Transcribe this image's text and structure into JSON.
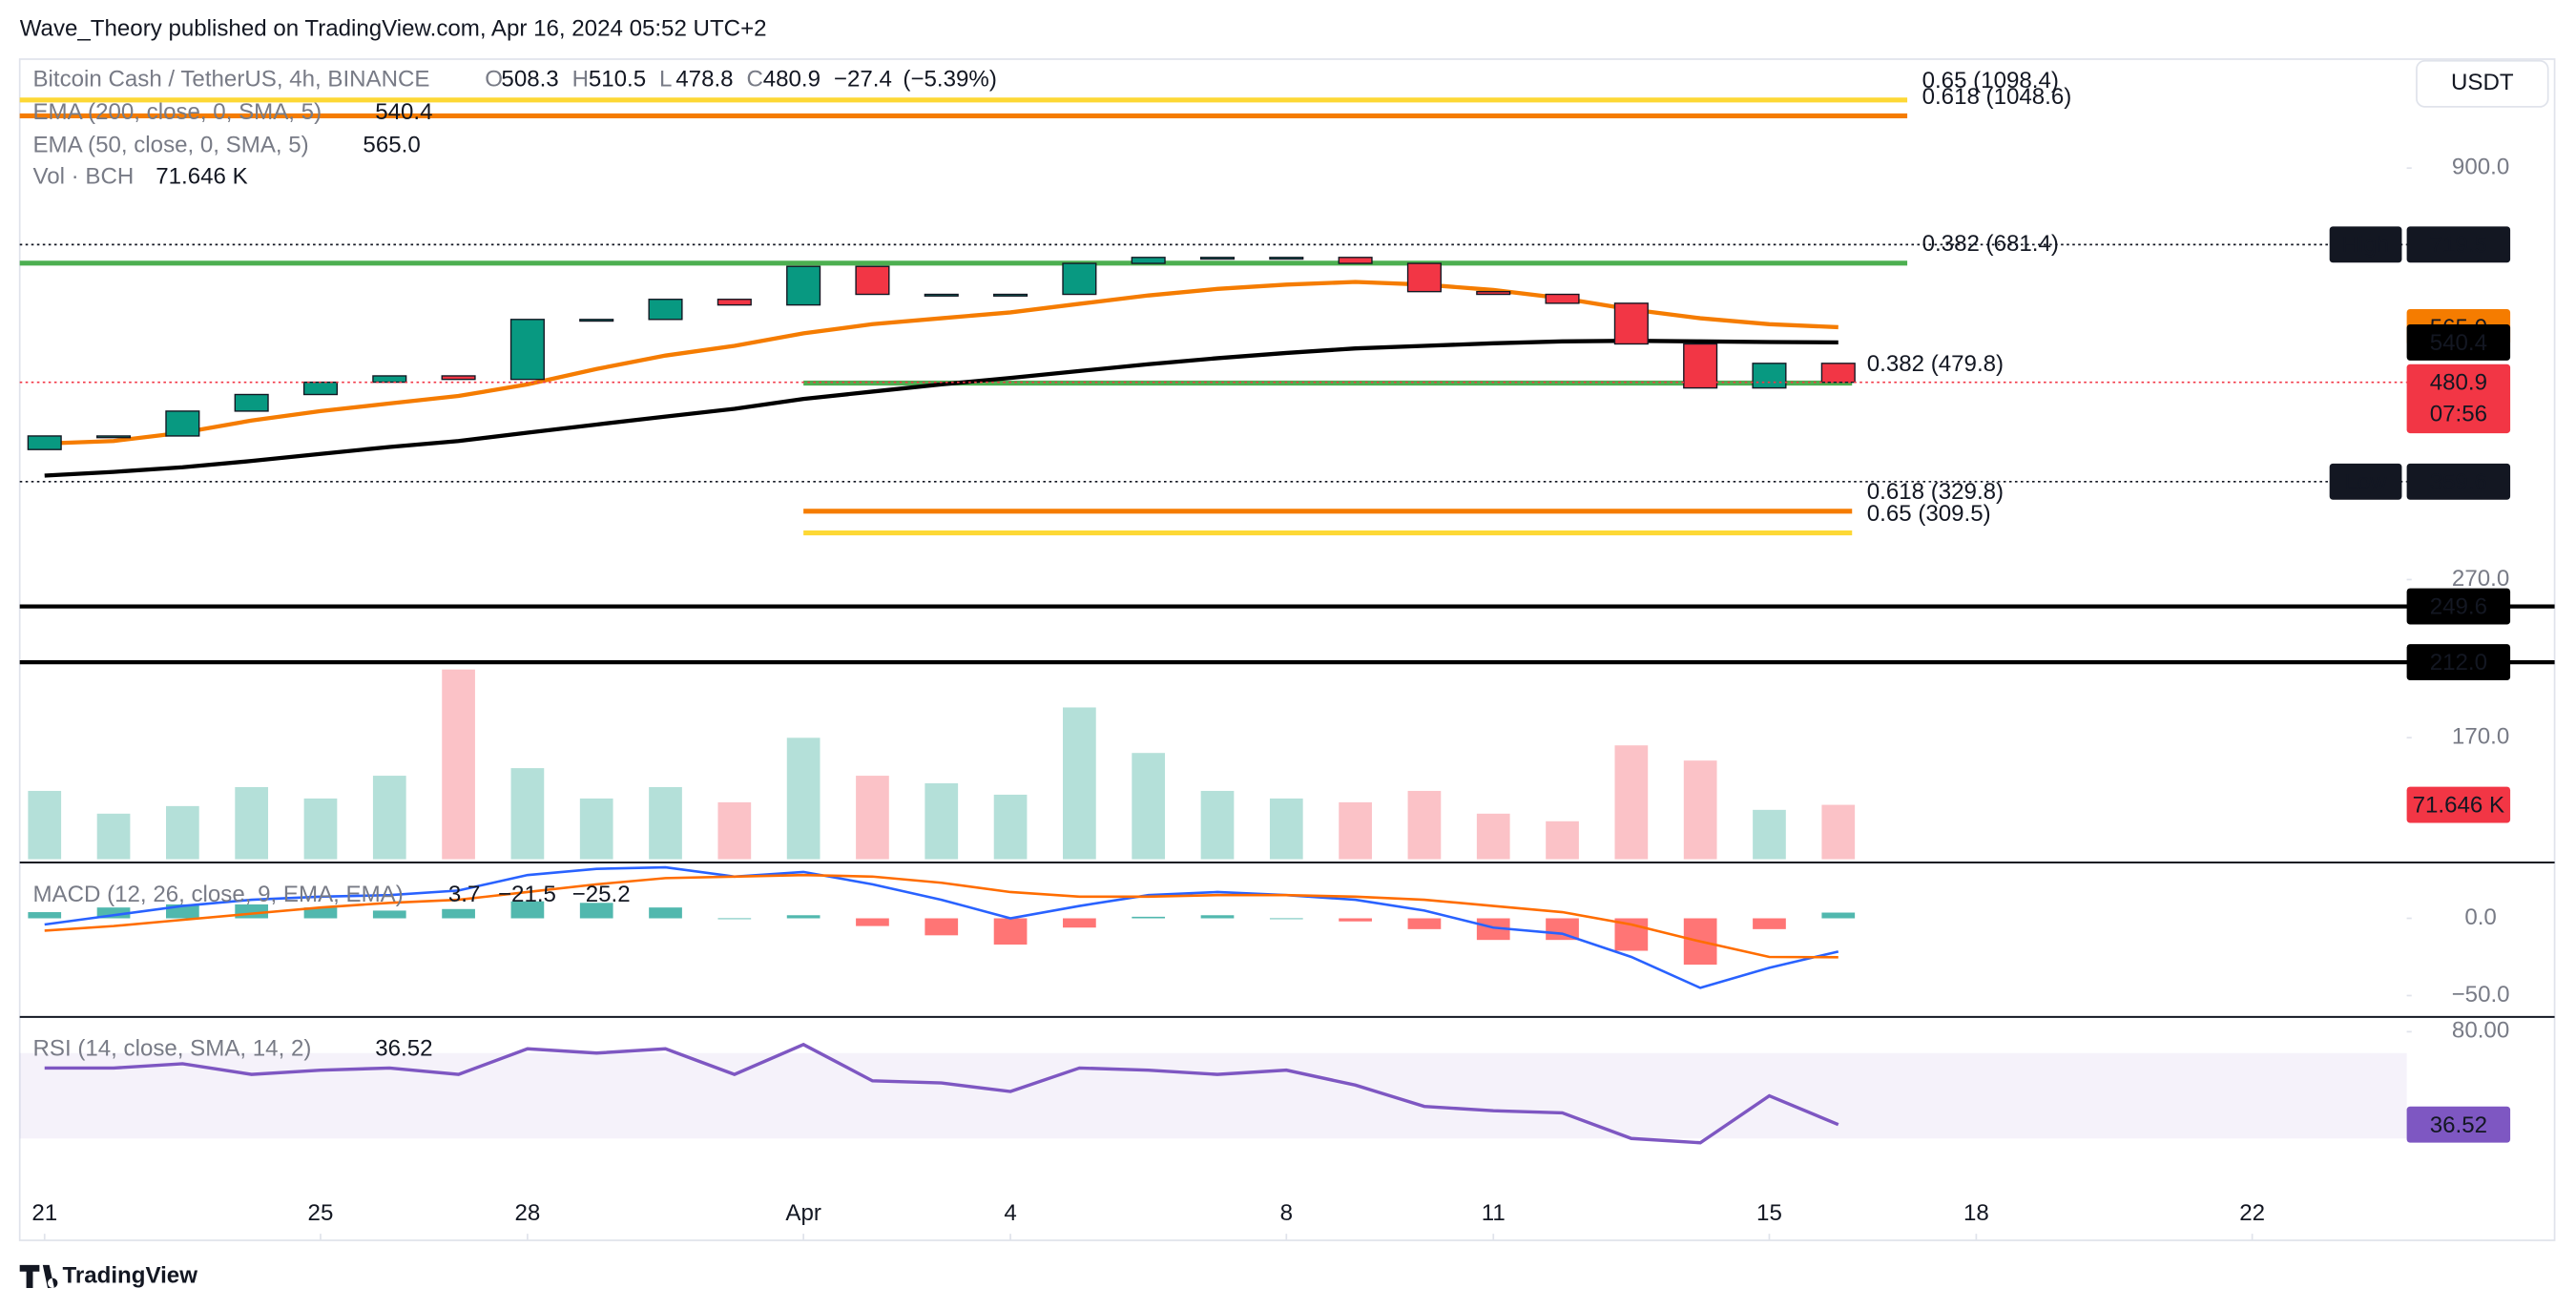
{
  "header": "Wave_Theory published on TradingView.com, Apr 16, 2024 05:52 UTC+2",
  "footer": "TradingView",
  "currency_button": "USDT",
  "chart_data": [
    {
      "type": "candlestick",
      "title": "Bitcoin Cash / TetherUS, 4h, BINANCE",
      "ohlc_legend": [
        {
          "key": "O",
          "value": 508.3
        },
        {
          "key": "H",
          "value": 510.5
        },
        {
          "key": "L",
          "value": 478.8
        },
        {
          "key": "C",
          "value": 480.9
        }
      ],
      "change": {
        "value": -27.4,
        "label": "−27.4"
      },
      "change_pct": {
        "value": -5.39,
        "label": "(−5.39%)"
      },
      "x": [
        0,
        1,
        2,
        3,
        4,
        5,
        6,
        7,
        8,
        9,
        10,
        11,
        12,
        13,
        14,
        15,
        16,
        17,
        18,
        19,
        20,
        21,
        22,
        23,
        24,
        25,
        26
      ],
      "open": [
        395,
        411,
        411,
        442,
        464,
        481,
        490,
        485,
        578,
        578,
        613,
        603,
        675,
        622,
        622,
        622,
        681,
        693,
        693,
        693,
        681,
        627,
        622,
        606,
        538,
        473,
        508.3
      ],
      "high": {
        "name": "High",
        "value": 719.5
      },
      "low": {
        "name": "Low",
        "value": 359.6
      },
      "close": [
        411,
        411,
        442,
        464,
        481,
        490,
        485,
        578,
        578,
        613,
        603,
        675,
        622,
        622,
        622,
        681,
        693,
        693,
        693,
        681,
        627,
        622,
        606,
        538,
        473,
        508.3,
        480.9
      ],
      "up_color": "#089981",
      "down_color": "#f23645",
      "log_scale": true,
      "xlim": [
        -0.36,
        34.24
      ],
      "xticks": [
        {
          "value": 0,
          "label": "21"
        },
        {
          "value": 4,
          "label": "25"
        },
        {
          "value": 7,
          "label": "28"
        },
        {
          "value": 11,
          "label": "Apr"
        },
        {
          "value": 14,
          "label": "4"
        },
        {
          "value": 18,
          "label": "8"
        },
        {
          "value": 21,
          "label": "11"
        },
        {
          "value": 25,
          "label": "15"
        },
        {
          "value": 28,
          "label": "18"
        },
        {
          "value": 32,
          "label": "22"
        }
      ],
      "ylim": [
        118,
        1226
      ],
      "yticks": [
        {
          "value": 900,
          "label": "900.0"
        },
        {
          "value": 270,
          "label": "270.0"
        },
        {
          "value": 170,
          "label": "170.0"
        }
      ],
      "series": [
        {
          "name": "EMA (200, close, 0, SMA, 5)",
          "color": "#000000",
          "values": [
            366,
            370,
            375,
            382,
            390,
            398,
            405,
            415,
            425,
            435,
            445,
            458,
            468,
            478,
            487,
            497,
            507,
            516,
            524,
            531,
            535,
            539,
            542,
            543,
            542,
            541,
            540.4
          ],
          "last": 540.4
        },
        {
          "name": "EMA (50, close, 0, SMA, 5)",
          "color": "#f57c00",
          "values": [
            402,
            405,
            415,
            430,
            442,
            452,
            462,
            478,
            500,
            520,
            535,
            555,
            570,
            580,
            590,
            605,
            620,
            632,
            640,
            645,
            640,
            630,
            615,
            595,
            580,
            570,
            565
          ],
          "last": {
            "value": 565,
            "label": "565.0"
          }
        }
      ],
      "levels": [
        {
          "label": "0.65 (1098.4)",
          "price": 1098.4,
          "color": "#fdd835",
          "x_start": -0.36,
          "x_end": 27
        },
        {
          "label": "0.618 (1048.6)",
          "price": 1048.6,
          "color": "#f57c00",
          "x_start": -0.36,
          "x_end": 27
        },
        {
          "label": "0.382 (681.4)",
          "price": 681.4,
          "color": "#4caf50",
          "x_start": -0.36,
          "x_end": 27
        },
        {
          "label": "0.382 (479.8)",
          "price": 479.8,
          "color": "#4caf50",
          "x_start": 11,
          "x_end": 26.2
        },
        {
          "label": "0.618 (329.8)",
          "price": 329.8,
          "color": "#f57c00",
          "x_start": 11,
          "x_end": 26.2
        },
        {
          "label": "0.65 (309.5)",
          "price": 309.5,
          "color": "#fdd835",
          "x_start": 11,
          "x_end": 26.2
        }
      ],
      "lines": [
        249.6,
        {
          "value": 212,
          "label": "212.0"
        }
      ],
      "lines_color": "#000000",
      "price_marker": {
        "value": 480.9,
        "countdown": "07:56",
        "color": "#f23645"
      },
      "volume": {
        "name": "Vol · BCH",
        "values": [
          90,
          60,
          70,
          95,
          80,
          110,
          250,
          120,
          80,
          95,
          75,
          160,
          110,
          100,
          85,
          200,
          140,
          90,
          80,
          75,
          90,
          60,
          50,
          150,
          130,
          65,
          71.646
        ],
        "ylim": [
          0,
          1050
        ],
        "last": {
          "value": 71.646,
          "label": "71.646 K"
        }
      }
    },
    {
      "type": "macd",
      "title": "MACD (12, 26, close, 9, EMA, EMA)",
      "ylim": [
        -63.8,
        34
      ],
      "yticks": [
        {
          "value": 0,
          "label": "0.0"
        },
        {
          "value": -50,
          "label": "−50.0"
        }
      ],
      "histogram": {
        "values": [
          4,
          7,
          9,
          9,
          7,
          5,
          6,
          11,
          10,
          7,
          0,
          2,
          -5,
          -11,
          -17,
          -6,
          1,
          2,
          0,
          -2,
          -7,
          -14,
          -14,
          -21,
          -30,
          -7,
          3.7
        ],
        "positive_color": "#26a69a",
        "negative_color": "#ff5252",
        "last": 3.7
      },
      "series": [
        {
          "color": "#2962ff",
          "values": [
            -4,
            2,
            8,
            12,
            14,
            15,
            18,
            28,
            32,
            33,
            27,
            30,
            22,
            12,
            0,
            8,
            15,
            17,
            15,
            12,
            5,
            -6,
            -10,
            -25,
            -45,
            -32,
            -21.5
          ],
          "last": {
            "value": -21.5,
            "label": "−21.5"
          }
        },
        {
          "color": "#ff6d00",
          "values": [
            -8,
            -5,
            -1,
            3,
            7,
            10,
            12,
            17,
            22,
            26,
            27,
            28,
            27,
            23,
            17,
            14,
            14,
            15,
            15,
            14,
            12,
            8,
            4,
            -4,
            -15,
            -25,
            -25.2
          ],
          "last": {
            "value": -25.2,
            "label": "−25.2"
          }
        }
      ]
    },
    {
      "type": "rsi",
      "title": "RSI (14, close, SMA, 14, 2)",
      "ylim": [
        10,
        85.4
      ],
      "yticks": [
        {
          "value": 80,
          "label": "80.00"
        }
      ],
      "band": [
        30,
        70
      ],
      "color": "#7e57c2",
      "values": [
        63,
        63,
        65,
        60,
        62,
        63,
        60,
        72,
        70,
        72,
        60,
        74,
        57,
        56,
        52,
        63,
        62,
        60,
        62,
        55,
        45,
        43,
        42,
        30,
        28,
        50,
        36.52
      ],
      "last": 36.52
    }
  ]
}
